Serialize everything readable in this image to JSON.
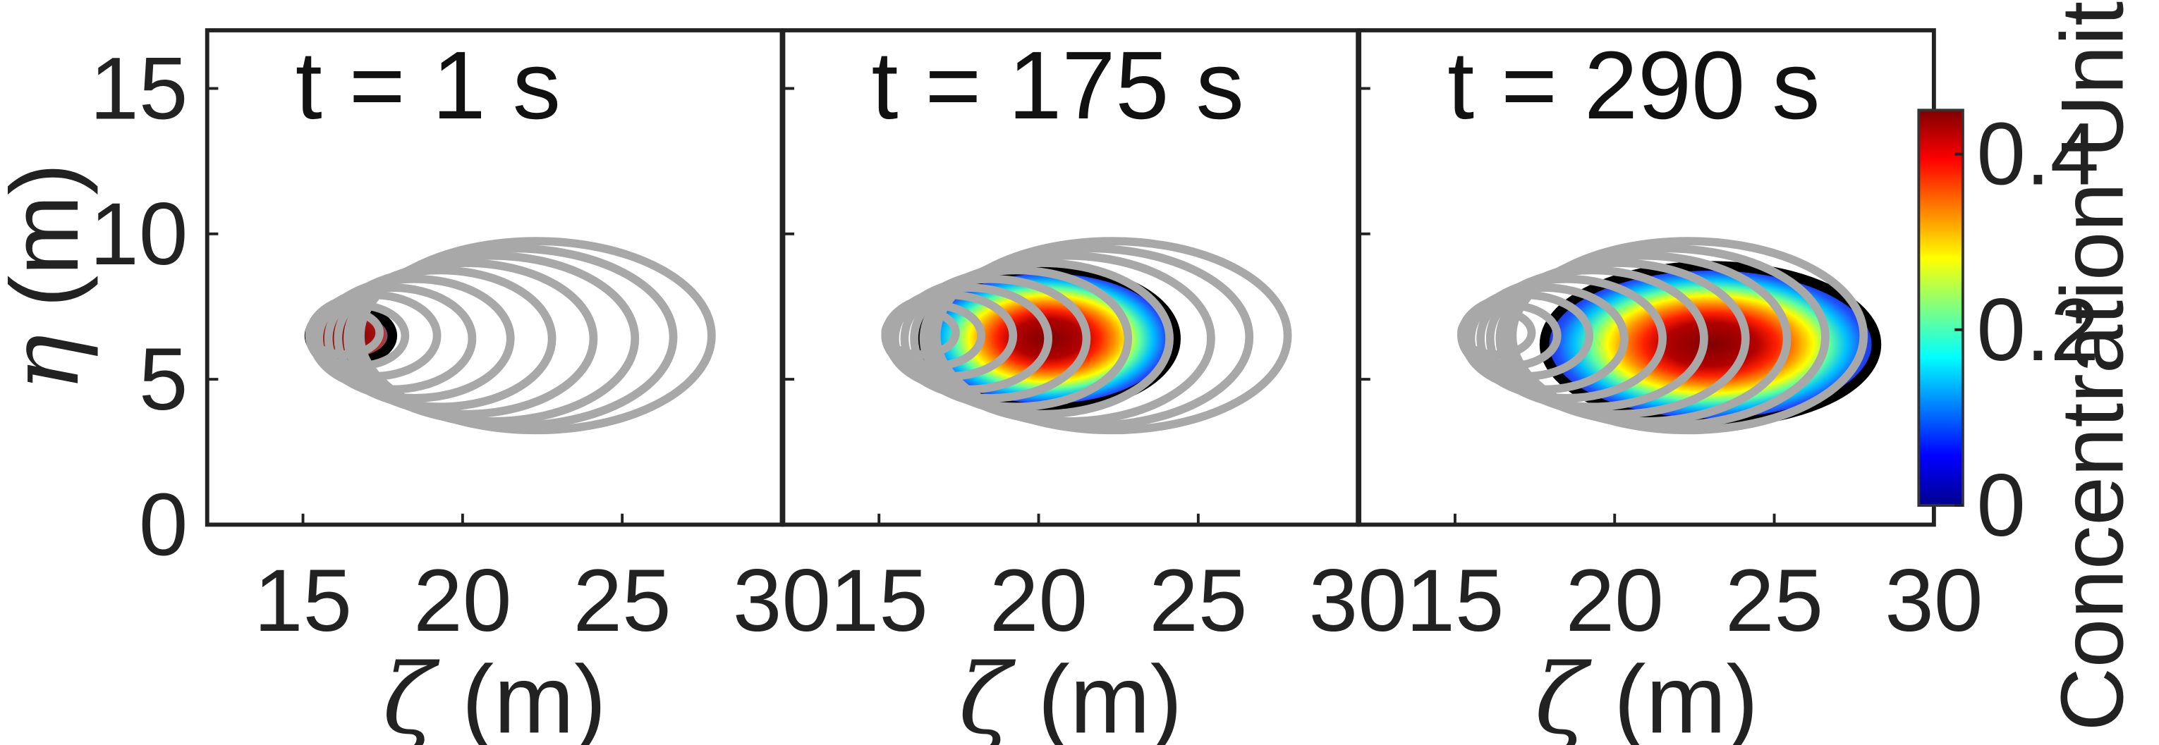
{
  "chart_data": {
    "type": "contour",
    "panels": [
      {
        "title": "t = 1 s",
        "plume": {
          "center": [
            16.5,
            6.5
          ],
          "semi_axes": [
            1.3,
            0.9
          ],
          "peak": 0.45
        }
      },
      {
        "title": "t = 175 s",
        "plume": {
          "center": [
            20.3,
            6.4
          ],
          "semi_axes": [
            4.0,
            2.4
          ],
          "peak": 0.43
        }
      },
      {
        "title": "t = 290 s",
        "plume": {
          "center": [
            23.0,
            6.2
          ],
          "semi_axes": [
            5.2,
            2.7
          ],
          "peak": 0.43
        }
      }
    ],
    "trajectory_ellipses": [
      {
        "center": [
          16.3,
          6.6
        ],
        "semi_axes": [
          1.1,
          0.75
        ]
      },
      {
        "center": [
          16.7,
          6.5
        ],
        "semi_axes": [
          1.5,
          1.05
        ]
      },
      {
        "center": [
          17.2,
          6.5
        ],
        "semi_axes": [
          2.0,
          1.4
        ]
      },
      {
        "center": [
          17.8,
          6.4
        ],
        "semi_axes": [
          2.5,
          1.75
        ]
      },
      {
        "center": [
          18.5,
          6.4
        ],
        "semi_axes": [
          3.0,
          2.05
        ]
      },
      {
        "center": [
          19.3,
          6.4
        ],
        "semi_axes": [
          3.5,
          2.35
        ]
      },
      {
        "center": [
          20.1,
          6.4
        ],
        "semi_axes": [
          4.0,
          2.6
        ]
      },
      {
        "center": [
          20.9,
          6.4
        ],
        "semi_axes": [
          4.5,
          2.85
        ]
      },
      {
        "center": [
          21.6,
          6.45
        ],
        "semi_axes": [
          5.0,
          3.05
        ]
      },
      {
        "center": [
          22.3,
          6.5
        ],
        "semi_axes": [
          5.5,
          3.25
        ]
      }
    ],
    "x": {
      "label": "ζ (m)",
      "symbol": "ζ",
      "unit": "(m)",
      "range": [
        12,
        30
      ],
      "ticks": [
        15,
        20,
        25,
        30
      ]
    },
    "y": {
      "label": "η (m)",
      "symbol": "η",
      "unit": "(m)",
      "range": [
        0,
        17
      ],
      "ticks": [
        0,
        5,
        10,
        15
      ]
    },
    "colorbar": {
      "label": "Concentration Units",
      "range": [
        0,
        0.45
      ],
      "ticks": [
        0,
        0.2,
        0.4
      ],
      "tick_labels": [
        "0",
        "0.2",
        "0.4"
      ],
      "colormap": [
        "#00008f",
        "#0000ff",
        "#0080ff",
        "#00ffff",
        "#80ff80",
        "#ffff00",
        "#ff8000",
        "#ff0000",
        "#800000"
      ]
    },
    "colors": {
      "contour_line": "#a8a8a8",
      "plume_outline": "#000000",
      "frame": "#222222"
    }
  }
}
